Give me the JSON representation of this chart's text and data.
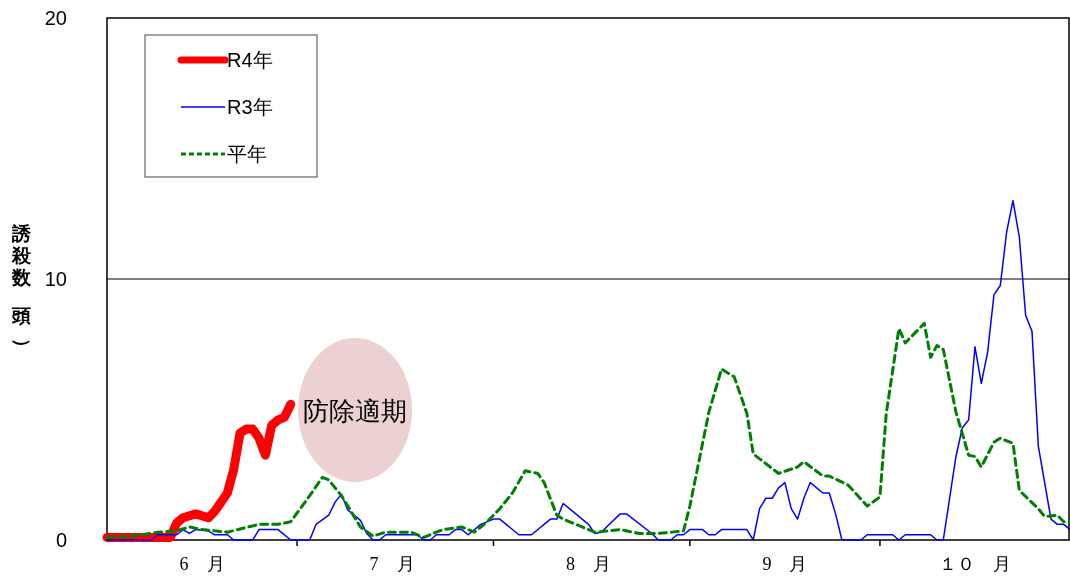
{
  "chart_data": {
    "type": "line",
    "ylabel": "誘殺数（頭）",
    "xlim": [
      "--06-01",
      "--10-31"
    ],
    "ylim": [
      0,
      20
    ],
    "yticks": [
      0,
      10,
      20
    ],
    "xticks": [
      {
        "value": "--06-16",
        "label": "6　月"
      },
      {
        "value": "--07-01",
        "label": null
      },
      {
        "value": "--07-16",
        "label": "7　月"
      },
      {
        "value": "--08-01",
        "label": null
      },
      {
        "value": "--08-16",
        "label": "8　月"
      },
      {
        "value": "--09-01",
        "label": null
      },
      {
        "value": "--09-16",
        "label": "9　月"
      },
      {
        "value": "--10-01",
        "label": null
      },
      {
        "value": "--10-16",
        "label": "１０　月"
      }
    ],
    "grid": "y",
    "legend": "top left",
    "line_style": "solid",
    "marker": "none",
    "annotations": [
      "防除適期"
    ],
    "series": [
      {
        "name": "R4年",
        "color": "#ff0000",
        "x": [
          "--06-01",
          "--06-08",
          "--06-11",
          "--06-12",
          "--06-13",
          "--06-15",
          "--06-17",
          "--06-18",
          "--06-20",
          "--06-21",
          "--06-22",
          "--06-23",
          "--06-24",
          "--06-25",
          "--06-26",
          "--06-27",
          "--06-28",
          "--06-29",
          "--06-30"
        ],
        "values": [
          0.1,
          0.1,
          0.1,
          0.65,
          0.85,
          1,
          0.85,
          1.1,
          1.8,
          2.7,
          4.1,
          4.25,
          4.25,
          3.9,
          3.25,
          4.4,
          4.6,
          4.7,
          5.2
        ]
      },
      {
        "name": "R3年",
        "color": "#0000ff",
        "x": [
          "--06-01",
          "--06-08",
          "--06-09",
          "--06-12",
          "--06-13",
          "--06-14",
          "--06-15",
          "--06-17",
          "--06-18",
          "--06-20",
          "--06-21",
          "--06-24",
          "--06-25",
          "--06-28",
          "--06-30",
          "--07-03",
          "--07-04",
          "--07-06",
          "--07-07",
          "--07-08",
          "--07-09",
          "--07-11",
          "--07-12",
          "--07-13",
          "--07-14",
          "--07-15",
          "--07-20",
          "--07-21",
          "--07-22",
          "--07-23",
          "--07-25",
          "--07-26",
          "--07-27",
          "--07-28",
          "--07-30",
          "--08-01",
          "--08-02",
          "--08-05",
          "--08-07",
          "--08-10",
          "--08-11",
          "--08-12",
          "--08-16",
          "--08-17",
          "--08-18",
          "--08-21",
          "--08-22",
          "--08-26",
          "--08-27",
          "--08-29",
          "--08-30",
          "--08-31",
          "--09-01",
          "--09-03",
          "--09-04",
          "--09-05",
          "--09-06",
          "--09-10",
          "--09-11",
          "--09-12",
          "--09-13",
          "--09-14",
          "--09-15",
          "--09-16",
          "--09-17",
          "--09-18",
          "--09-19",
          "--09-20",
          "--09-22",
          "--09-23",
          "--09-24",
          "--09-25",
          "--09-28",
          "--09-29",
          "--10-03",
          "--10-04",
          "--10-05",
          "--10-09",
          "--10-10",
          "--10-11",
          "--10-13",
          "--10-14",
          "--10-15",
          "--10-16",
          "--10-17",
          "--10-18",
          "--10-19",
          "--10-20",
          "--10-21",
          "--10-22",
          "--10-23",
          "--10-24",
          "--10-25",
          "--10-26",
          "--10-28",
          "--10-29",
          "--10-30",
          "--10-31"
        ],
        "values": [
          0,
          0,
          0.2,
          0.2,
          0.4,
          0.25,
          0.4,
          0.35,
          0.2,
          0.2,
          0,
          0,
          0.4,
          0.4,
          0,
          0,
          0.6,
          0.95,
          1.45,
          1.75,
          1.15,
          0.75,
          0.25,
          0,
          0,
          0.2,
          0.2,
          0,
          0,
          0.2,
          0.2,
          0.4,
          0.4,
          0.2,
          0.6,
          0.8,
          0.8,
          0.2,
          0.2,
          0.8,
          0.8,
          1.4,
          0.6,
          0.25,
          0.3,
          1,
          1,
          0.25,
          0,
          0,
          0.2,
          0.2,
          0.4,
          0.4,
          0.2,
          0.2,
          0.4,
          0.4,
          0,
          1.2,
          1.6,
          1.6,
          2,
          2.2,
          1.2,
          0.8,
          1.6,
          2.2,
          1.8,
          1.8,
          1,
          0,
          0,
          0.2,
          0.2,
          0,
          0.2,
          0.2,
          0,
          0,
          3.2,
          4.3,
          4.6,
          7.4,
          6,
          7.2,
          9.4,
          9.75,
          11.8,
          13,
          11.6,
          8.6,
          8,
          3.6,
          0.8,
          0.6,
          0.6,
          0.4
        ]
      },
      {
        "name": "平年",
        "color": "#008000",
        "line_style": "dashed",
        "x": [
          "--06-01",
          "--06-05",
          "--06-09",
          "--06-12",
          "--06-14",
          "--06-16",
          "--06-20",
          "--06-25",
          "--06-28",
          "--06-30",
          "--07-03",
          "--07-05",
          "--07-06",
          "--07-08",
          "--07-11",
          "--07-13",
          "--07-15",
          "--07-19",
          "--07-21",
          "--07-22",
          "--07-24",
          "--07-27",
          "--07-29",
          "--07-31",
          "--08-02",
          "--08-04",
          "--08-06",
          "--08-08",
          "--08-09",
          "--08-11",
          "--08-12",
          "--08-15",
          "--08-17",
          "--08-21",
          "--08-24",
          "--08-27",
          "--08-31",
          "--09-01",
          "--09-04",
          "--09-06",
          "--09-08",
          "--09-10",
          "--09-11",
          "--09-15",
          "--09-18",
          "--09-19",
          "--09-22",
          "--09-23",
          "--09-26",
          "--09-29",
          "--10-01",
          "--10-02",
          "--10-04",
          "--10-05",
          "--10-08",
          "--10-09",
          "--10-10",
          "--10-11",
          "--10-13",
          "--10-15",
          "--10-16",
          "--10-17",
          "--10-19",
          "--10-20",
          "--10-22",
          "--10-23",
          "--10-26",
          "--10-27",
          "--10-29",
          "--10-30",
          "--10-31"
        ],
        "values": [
          0.1,
          0.15,
          0.3,
          0.35,
          0.5,
          0.4,
          0.3,
          0.6,
          0.6,
          0.7,
          1.7,
          2.4,
          2.3,
          1.7,
          0.5,
          0.15,
          0.3,
          0.3,
          0.1,
          0.2,
          0.4,
          0.5,
          0.3,
          0.7,
          1.2,
          1.8,
          2.65,
          2.55,
          2.2,
          0.95,
          0.8,
          0.5,
          0.3,
          0.4,
          0.25,
          0.25,
          0.35,
          1.3,
          4.9,
          6.55,
          6.25,
          4.85,
          3.3,
          2.55,
          2.8,
          3,
          2.45,
          2.45,
          2.1,
          1.3,
          1.65,
          4.85,
          8.1,
          7.55,
          8.3,
          7,
          7.45,
          7.3,
          4.9,
          3.25,
          3.2,
          2.8,
          3.75,
          3.9,
          3.7,
          1.9,
          1.2,
          0.9,
          0.95,
          0.7,
          0.7
        ]
      }
    ]
  }
}
